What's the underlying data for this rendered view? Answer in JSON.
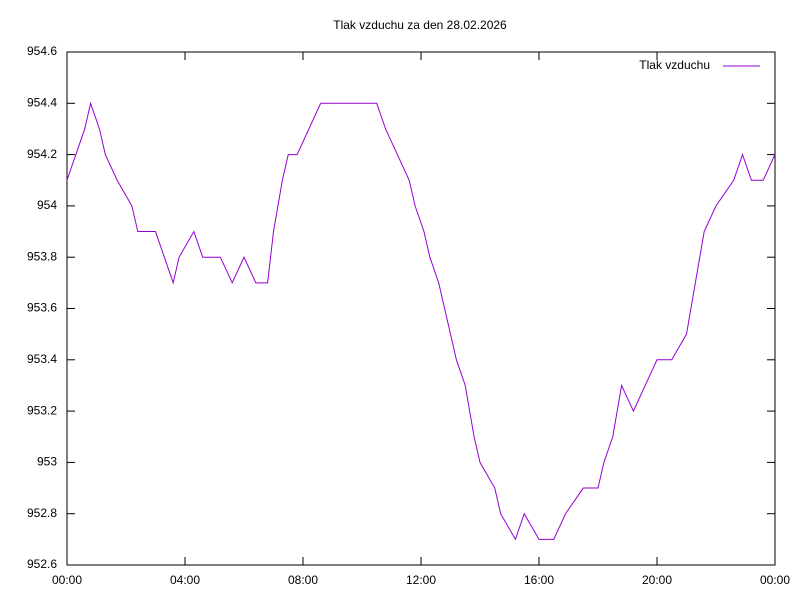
{
  "chart_data": {
    "type": "line",
    "title": "Tlak vzduchu za den 28.02.2026",
    "x": [
      0,
      0.3,
      0.6,
      0.8,
      1.1,
      1.3,
      1.7,
      2.2,
      2.4,
      3.0,
      3.3,
      3.6,
      3.8,
      4.3,
      4.6,
      5.2,
      5.6,
      6.0,
      6.4,
      6.8,
      7.0,
      7.3,
      7.5,
      7.8,
      8.2,
      8.6,
      9.0,
      9.5,
      10.0,
      10.5,
      10.8,
      11.2,
      11.6,
      11.8,
      12.1,
      12.3,
      12.6,
      13.0,
      13.2,
      13.5,
      13.8,
      14.0,
      14.5,
      14.7,
      15.2,
      15.5,
      16.0,
      16.5,
      16.9,
      17.5,
      18.0,
      18.2,
      18.5,
      18.8,
      19.2,
      19.6,
      20.0,
      20.5,
      21.0,
      21.3,
      21.6,
      22.0,
      22.6,
      22.9,
      23.2,
      23.6,
      24.0
    ],
    "series": [
      {
        "name": "Tlak vzduchu",
        "color": "#9400d3",
        "values": [
          954.1,
          954.2,
          954.3,
          954.4,
          954.3,
          954.2,
          954.1,
          954.0,
          953.9,
          953.9,
          953.8,
          953.7,
          953.8,
          953.9,
          953.8,
          953.8,
          953.7,
          953.8,
          953.7,
          953.7,
          953.9,
          954.1,
          954.2,
          954.2,
          954.3,
          954.4,
          954.4,
          954.4,
          954.4,
          954.4,
          954.3,
          954.2,
          954.1,
          954.0,
          953.9,
          953.8,
          953.7,
          953.5,
          953.4,
          953.3,
          953.1,
          953.0,
          952.9,
          952.8,
          952.7,
          952.8,
          952.7,
          952.7,
          952.8,
          952.9,
          952.9,
          953.0,
          953.1,
          953.3,
          953.2,
          953.3,
          953.4,
          953.4,
          953.5,
          953.7,
          953.9,
          954.0,
          954.1,
          954.2,
          954.1,
          954.1,
          954.2
        ]
      }
    ],
    "xlim": [
      0,
      24
    ],
    "xticks": [
      {
        "value": 0,
        "label": "00:00"
      },
      {
        "value": 4,
        "label": "04:00"
      },
      {
        "value": 8,
        "label": "08:00"
      },
      {
        "value": 12,
        "label": "12:00"
      },
      {
        "value": 16,
        "label": "16:00"
      },
      {
        "value": 20,
        "label": "20:00"
      },
      {
        "value": 24,
        "label": "00:00"
      }
    ],
    "ylim": [
      952.6,
      954.6
    ],
    "yticks": [
      952.6,
      952.8,
      953,
      953.2,
      953.4,
      953.6,
      953.8,
      954,
      954.2,
      954.4,
      954.6
    ],
    "legend": "top-right",
    "grid": false
  }
}
